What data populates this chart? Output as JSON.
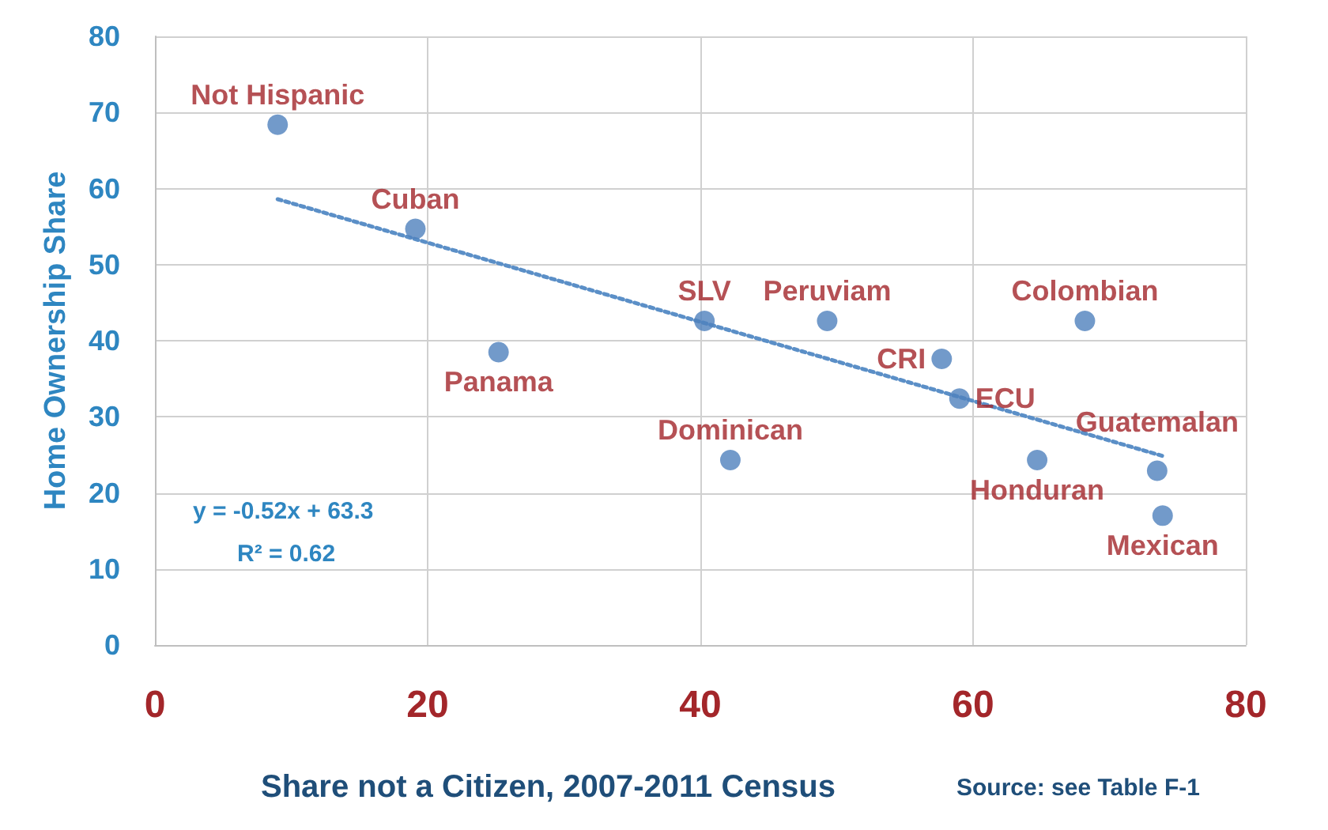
{
  "chart_data": {
    "type": "scatter",
    "xlabel": "Share not a Citizen, 2007-2011 Census",
    "ylabel": "Home Ownership Share",
    "xlim": [
      0,
      80
    ],
    "xticks": [
      0,
      20,
      40,
      60,
      80
    ],
    "ylim": [
      0,
      80
    ],
    "yticks": [
      0,
      10,
      20,
      30,
      40,
      50,
      60,
      70,
      80
    ],
    "grid": true,
    "marker": "circle",
    "series": [
      {
        "color": "#4f81bd",
        "x": [
          9.0,
          19.1,
          25.2,
          40.3,
          42.2,
          49.3,
          57.7,
          59.0,
          68.2,
          64.7,
          73.5,
          73.9
        ],
        "values": [
          68.4,
          54.7,
          38.5,
          42.6,
          24.3,
          42.6,
          37.6,
          32.4,
          42.6,
          24.3,
          22.9,
          17.0
        ]
      },
      {
        "type": "line",
        "color": "#5b8fc7",
        "line_style": "dotted",
        "marker": "none",
        "x": [
          9,
          74
        ],
        "values": [
          58.6,
          24.8
        ]
      }
    ],
    "annotations": [
      {
        "text": "Not Hispanic",
        "x": 9.0,
        "y": 68.4
      },
      {
        "text": "Cuban",
        "x": 19.1,
        "y": 54.7
      },
      {
        "text": "Panama",
        "x": 25.2,
        "y": 38.5
      },
      {
        "text": "SLV",
        "x": 40.3,
        "y": 42.6
      },
      {
        "text": "Dominican",
        "x": 42.2,
        "y": 24.3
      },
      {
        "text": "Peruviam",
        "x": 49.3,
        "y": 42.6
      },
      {
        "text": "CRI",
        "x": 57.7,
        "y": 37.6
      },
      {
        "text": "ECU",
        "x": 59.0,
        "y": 32.4
      },
      {
        "text": "Colombian",
        "x": 68.2,
        "y": 42.6
      },
      {
        "text": "Honduran",
        "x": 64.7,
        "y": 24.3
      },
      {
        "text": "Guatemalan",
        "x": 73.5,
        "y": 22.9
      },
      {
        "text": "Mexican",
        "x": 73.9,
        "y": 17.0
      },
      "y = -0.52x + 63.3",
      "R² = 0.62",
      "Source: see Table F-1"
    ]
  }
}
